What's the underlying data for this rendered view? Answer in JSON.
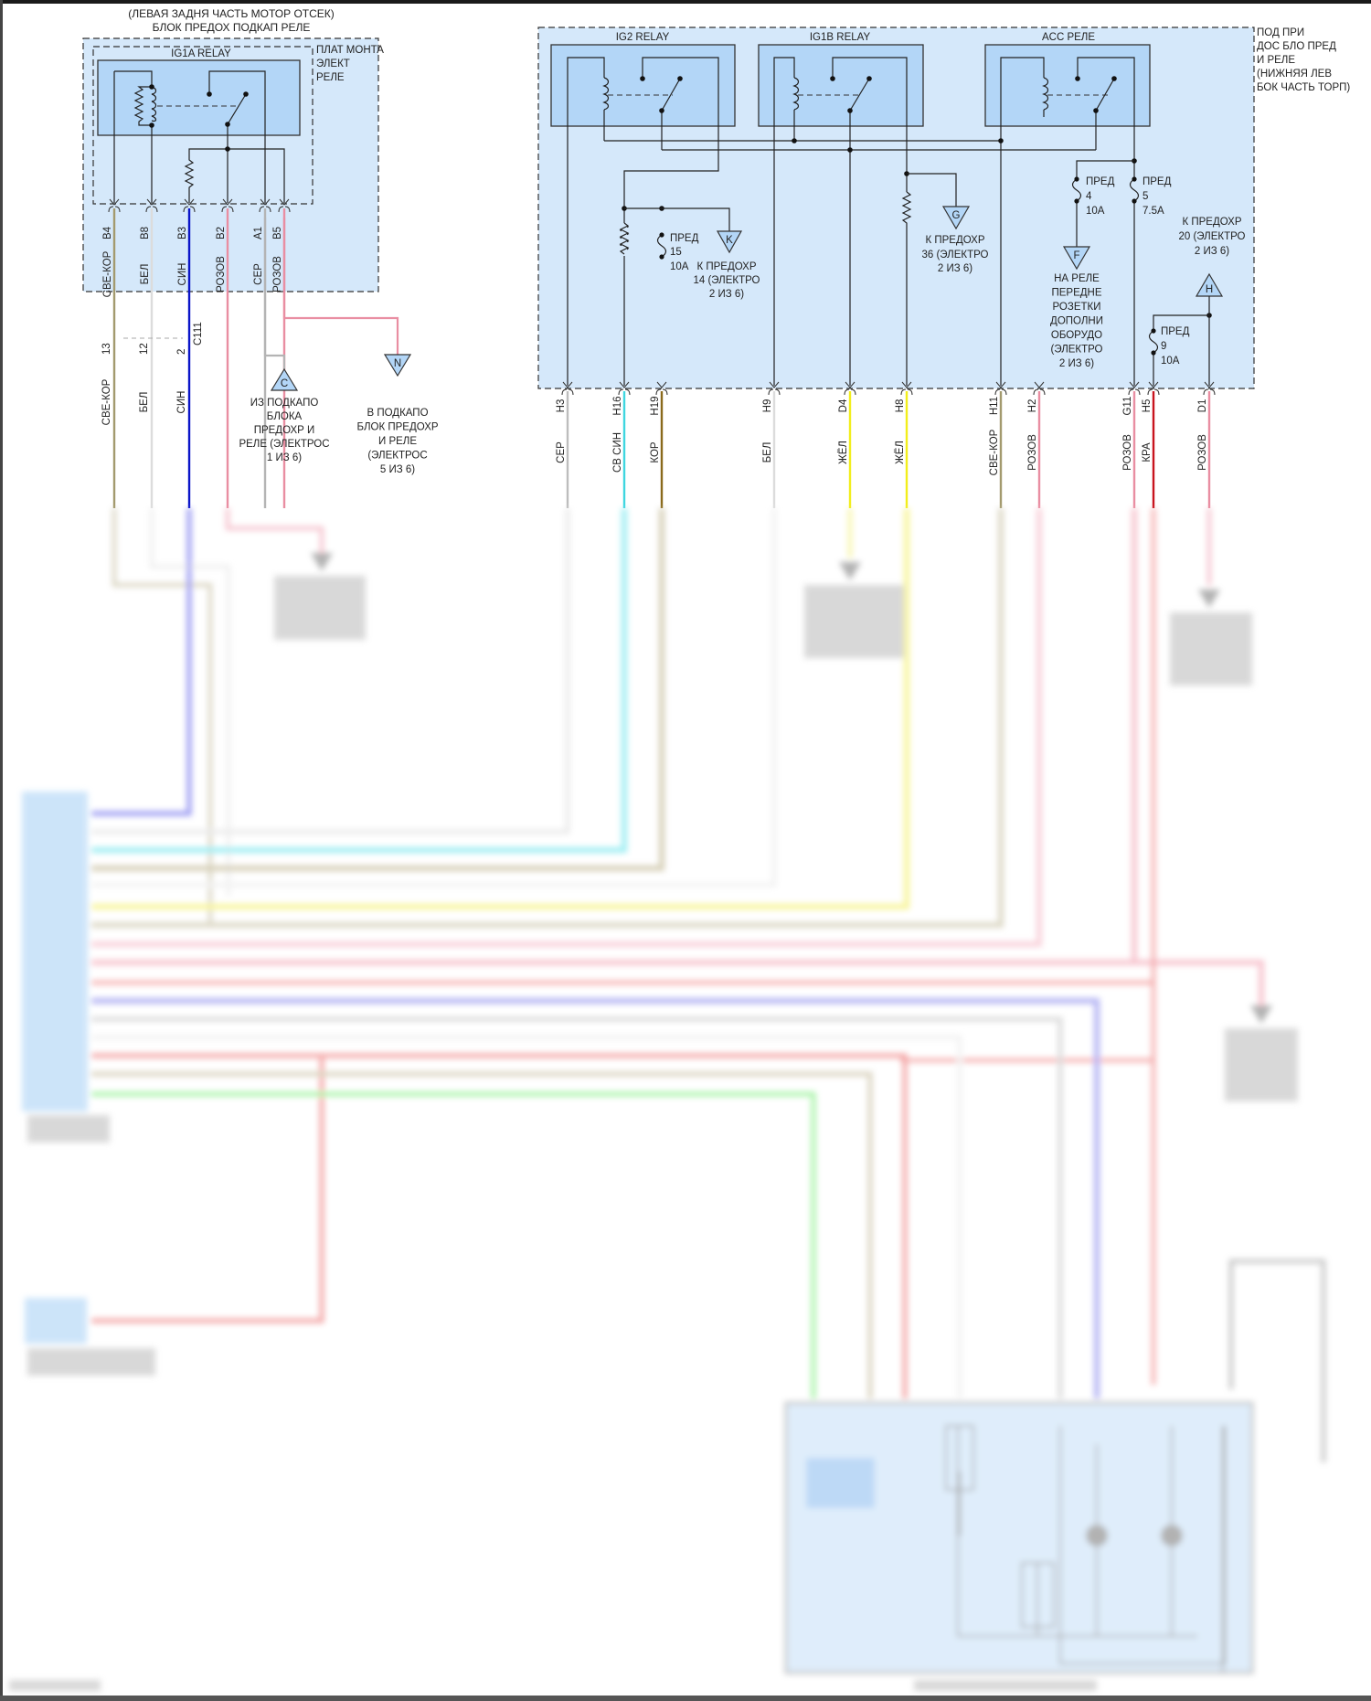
{
  "left_block": {
    "title_line1": "(ЛЕВАЯ ЗАДНЯ ЧАСТЬ МОТОР ОТСЕК)",
    "title_line2": "БЛОК ПРЕДОХ ПОДКАП РЕЛЕ",
    "relay_name": "IG1A RELAY",
    "side_note": [
      "ПЛАТ МОНТА",
      "ЭЛЕКТ",
      "РЕЛЕ"
    ],
    "pins": [
      {
        "pin": "B4",
        "color_label": "СВЕ-КОР",
        "wire_color": "#a39a6e"
      },
      {
        "pin": "B8",
        "color_label": "БЕЛ",
        "wire_color": "#dcdcdc"
      },
      {
        "pin": "B3",
        "color_label": "СИН",
        "wire_color": "#0a14c8"
      },
      {
        "pin": "B2",
        "color_label": "РОЗОВ",
        "wire_color": "#e98ea2"
      },
      {
        "pin": "A1",
        "color_label": "СЕР",
        "wire_color": "#b4b4b4"
      },
      {
        "pin": "B5",
        "color_label": "РОЗОВ",
        "wire_color": "#e98ea2"
      }
    ],
    "connector": {
      "name": "C111",
      "pins": [
        "13",
        "12",
        "2"
      ],
      "labels": [
        "СВЕ-КОР",
        "БЕЛ",
        "СИН"
      ]
    },
    "ref_c": {
      "letter": "C",
      "text": [
        "ИЗ ПОДКАПО",
        "БЛОКА",
        "ПРЕДОХР И",
        "РЕЛЕ (ЭЛЕКТРОС",
        "1 ИЗ 6)"
      ]
    },
    "ref_n": {
      "letter": "N",
      "text": [
        "В ПОДКАПО",
        "БЛОК ПРЕДОХР",
        "И РЕЛЕ",
        "(ЭЛЕКТРОС",
        "5 ИЗ 6)"
      ]
    }
  },
  "right_block": {
    "side_note": [
      "ПОД ПРИ",
      "ДОС БЛО ПРЕД",
      "И РЕЛЕ",
      "(НИЖНЯЯ ЛЕВ",
      "БОК ЧАСТЬ ТОРП)"
    ],
    "relays": [
      "IG2 RELAY",
      "IG1B RELAY",
      "ACC РЕЛЕ"
    ],
    "pins": [
      {
        "pin": "H3",
        "color_label": "СЕР",
        "wire_color": "#bdbdbd"
      },
      {
        "pin": "H16",
        "color_label": "СВ СИН",
        "wire_color": "#3fd6e0"
      },
      {
        "pin": "H19",
        "color_label": "КОР",
        "wire_color": "#8a6a1c"
      },
      {
        "pin": "H9",
        "color_label": "БЕЛ",
        "wire_color": "#dcdcdc"
      },
      {
        "pin": "D4",
        "color_label": "ЖЁЛ",
        "wire_color": "#f2ee1a"
      },
      {
        "pin": "H8",
        "color_label": "ЖЁЛ",
        "wire_color": "#f2ee1a"
      },
      {
        "pin": "H11",
        "color_label": "СВЕ-КОР",
        "wire_color": "#a39a6e"
      },
      {
        "pin": "H2",
        "color_label": "РОЗОВ",
        "wire_color": "#e98ea2"
      },
      {
        "pin": "G11",
        "color_label": "РОЗОВ",
        "wire_color": "#e98ea2"
      },
      {
        "pin": "H5",
        "color_label": "КРА",
        "wire_color": "#c8141e"
      },
      {
        "pin": "D1",
        "color_label": "РОЗОВ",
        "wire_color": "#e98ea2"
      }
    ],
    "fuse15": [
      "ПРЕД",
      "15",
      "10A"
    ],
    "ref_k": {
      "letter": "K",
      "text": [
        "К ПРЕДОХР",
        "14 (ЭЛЕКТРО",
        "2 ИЗ 6)"
      ]
    },
    "ref_g": {
      "letter": "G",
      "text": [
        "К ПРЕДОХР",
        "36 (ЭЛЕКТРО",
        "2 ИЗ 6)"
      ]
    },
    "fuse4": [
      "ПРЕД",
      "4",
      "10A"
    ],
    "fuse5": [
      "ПРЕД",
      "5",
      "7.5A"
    ],
    "ref_f": {
      "letter": "F",
      "text": [
        "НА РЕЛЕ",
        "ПЕРЕДНЕ",
        "РОЗЕТКИ",
        "ДОПОЛНИ",
        "ОБОРУДО",
        "(ЭЛЕКТРО",
        "2 ИЗ 6)"
      ]
    },
    "fuse20_note": [
      "К ПРЕДОХР",
      "20 (ЭЛЕКТРО",
      "2 ИЗ 6)"
    ],
    "ref_h": {
      "letter": "H"
    },
    "fuse9": [
      "ПРЕД",
      "9",
      "10A"
    ]
  },
  "colors": {
    "box_fill": "#d5e8fa",
    "relay_fill": "#b3d6f7"
  }
}
